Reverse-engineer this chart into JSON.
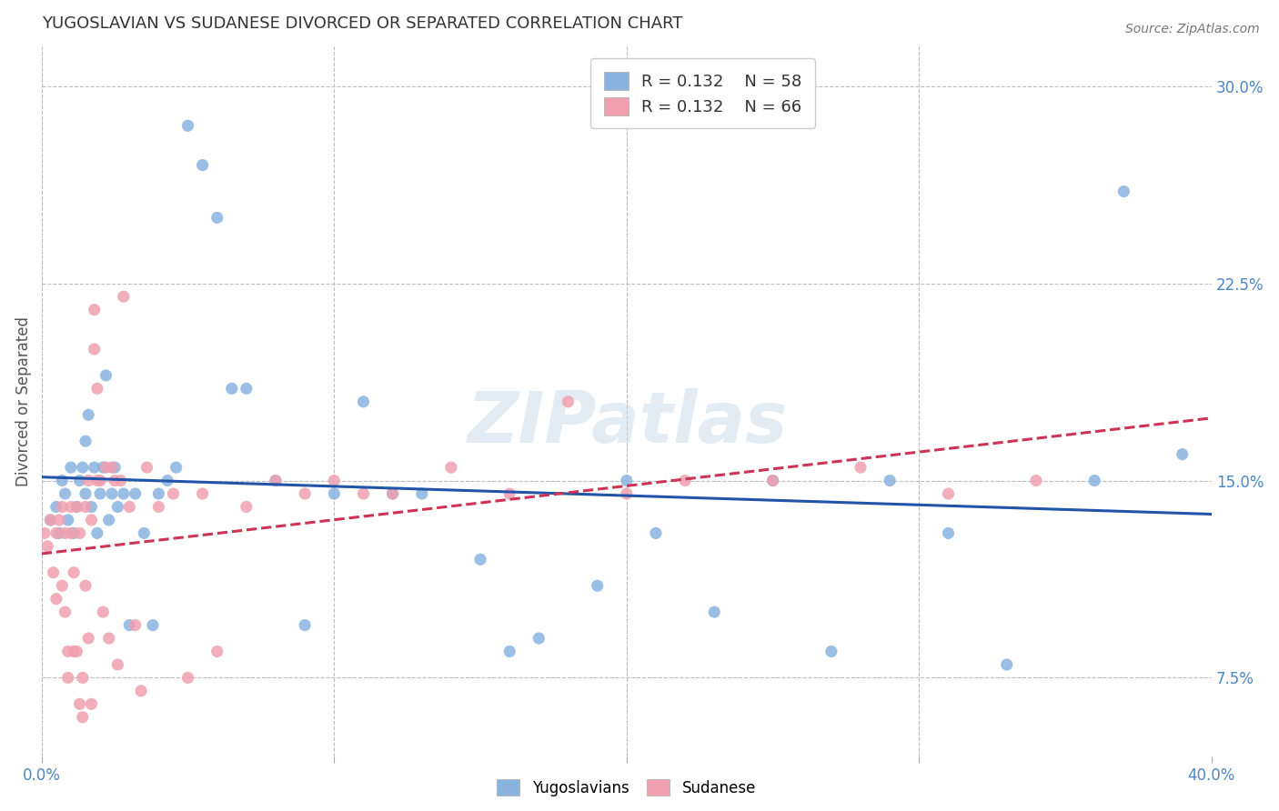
{
  "title": "YUGOSLAVIAN VS SUDANESE DIVORCED OR SEPARATED CORRELATION CHART",
  "source": "Source: ZipAtlas.com",
  "ylabel": "Divorced or Separated",
  "xlim": [
    0.0,
    0.4
  ],
  "ylim": [
    0.045,
    0.315
  ],
  "xticks": [
    0.0,
    0.1,
    0.2,
    0.3,
    0.4
  ],
  "xtick_labels": [
    "0.0%",
    "",
    "",
    "",
    "40.0%"
  ],
  "ytick_labels": [
    "7.5%",
    "15.0%",
    "22.5%",
    "30.0%"
  ],
  "yticks": [
    0.075,
    0.15,
    0.225,
    0.3
  ],
  "watermark": "ZIPatlas",
  "blue_color": "#8ab4e0",
  "pink_color": "#f0a0b0",
  "blue_line_color": "#2255aa",
  "pink_line_color": "#cc3355",
  "axis_color": "#4a86c8",
  "grid_color": "#bbbbbb",
  "yug_points_x": [
    0.003,
    0.005,
    0.006,
    0.007,
    0.008,
    0.009,
    0.01,
    0.011,
    0.012,
    0.013,
    0.014,
    0.015,
    0.015,
    0.016,
    0.017,
    0.018,
    0.019,
    0.02,
    0.021,
    0.022,
    0.023,
    0.024,
    0.025,
    0.026,
    0.028,
    0.03,
    0.032,
    0.035,
    0.038,
    0.04,
    0.043,
    0.046,
    0.05,
    0.055,
    0.06,
    0.065,
    0.07,
    0.08,
    0.09,
    0.1,
    0.11,
    0.12,
    0.13,
    0.15,
    0.16,
    0.17,
    0.19,
    0.2,
    0.21,
    0.23,
    0.25,
    0.27,
    0.29,
    0.31,
    0.33,
    0.36,
    0.37,
    0.39
  ],
  "yug_points_y": [
    0.135,
    0.14,
    0.13,
    0.15,
    0.145,
    0.135,
    0.155,
    0.13,
    0.14,
    0.15,
    0.155,
    0.145,
    0.165,
    0.175,
    0.14,
    0.155,
    0.13,
    0.145,
    0.155,
    0.19,
    0.135,
    0.145,
    0.155,
    0.14,
    0.145,
    0.095,
    0.145,
    0.13,
    0.095,
    0.145,
    0.15,
    0.155,
    0.285,
    0.27,
    0.25,
    0.185,
    0.185,
    0.15,
    0.095,
    0.145,
    0.18,
    0.145,
    0.145,
    0.12,
    0.085,
    0.09,
    0.11,
    0.15,
    0.13,
    0.1,
    0.15,
    0.085,
    0.15,
    0.13,
    0.08,
    0.15,
    0.26,
    0.16
  ],
  "sud_points_x": [
    0.001,
    0.002,
    0.003,
    0.004,
    0.005,
    0.005,
    0.006,
    0.007,
    0.007,
    0.008,
    0.008,
    0.009,
    0.009,
    0.01,
    0.01,
    0.011,
    0.011,
    0.012,
    0.012,
    0.013,
    0.013,
    0.014,
    0.014,
    0.015,
    0.015,
    0.016,
    0.016,
    0.017,
    0.017,
    0.018,
    0.018,
    0.019,
    0.019,
    0.02,
    0.021,
    0.022,
    0.023,
    0.024,
    0.025,
    0.026,
    0.027,
    0.028,
    0.03,
    0.032,
    0.034,
    0.036,
    0.04,
    0.045,
    0.05,
    0.055,
    0.06,
    0.07,
    0.08,
    0.09,
    0.1,
    0.11,
    0.12,
    0.14,
    0.16,
    0.18,
    0.2,
    0.22,
    0.25,
    0.28,
    0.31,
    0.34
  ],
  "sud_points_y": [
    0.13,
    0.125,
    0.135,
    0.115,
    0.13,
    0.105,
    0.135,
    0.14,
    0.11,
    0.13,
    0.1,
    0.085,
    0.075,
    0.13,
    0.14,
    0.115,
    0.085,
    0.085,
    0.14,
    0.13,
    0.065,
    0.075,
    0.06,
    0.14,
    0.11,
    0.09,
    0.15,
    0.135,
    0.065,
    0.215,
    0.2,
    0.15,
    0.185,
    0.15,
    0.1,
    0.155,
    0.09,
    0.155,
    0.15,
    0.08,
    0.15,
    0.22,
    0.14,
    0.095,
    0.07,
    0.155,
    0.14,
    0.145,
    0.075,
    0.145,
    0.085,
    0.14,
    0.15,
    0.145,
    0.15,
    0.145,
    0.145,
    0.155,
    0.145,
    0.18,
    0.145,
    0.15,
    0.15,
    0.155,
    0.145,
    0.15
  ]
}
